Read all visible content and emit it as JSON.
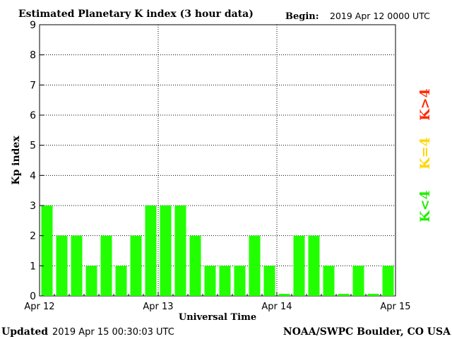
{
  "header": {
    "title": "Estimated Planetary K index (3 hour data)",
    "begin_label": "Begin:",
    "begin_value": "2019 Apr 12 0000 UTC"
  },
  "footer": {
    "updated_label": "Updated",
    "updated_value": "2019 Apr 15 00:30:03 UTC",
    "credit": "NOAA/SWPC Boulder, CO USA"
  },
  "legend": {
    "above": {
      "text": "K>4",
      "color": "#ff2a00"
    },
    "equal": {
      "text": "K=4",
      "color": "#ffd700"
    },
    "below": {
      "text": "K<4",
      "color": "#22ee00"
    }
  },
  "chart_data": {
    "type": "bar",
    "title": "Estimated Planetary K index (3 hour data)",
    "xlabel": "Universal Time",
    "ylabel": "Kp index",
    "ylim": [
      0,
      9
    ],
    "yticks": [
      0,
      1,
      2,
      3,
      4,
      5,
      6,
      7,
      8,
      9
    ],
    "xticks": [
      "Apr 12",
      "Apr 13",
      "Apr 14",
      "Apr 15"
    ],
    "interval_hours": 3,
    "grid": true,
    "bar_color": "#22ff00",
    "series": [
      {
        "values": [
          3,
          2,
          2,
          1,
          2,
          1,
          2,
          3,
          3,
          3,
          2,
          1,
          1,
          1,
          2,
          1,
          0,
          2,
          2,
          1,
          0,
          1,
          0,
          1
        ]
      }
    ]
  }
}
